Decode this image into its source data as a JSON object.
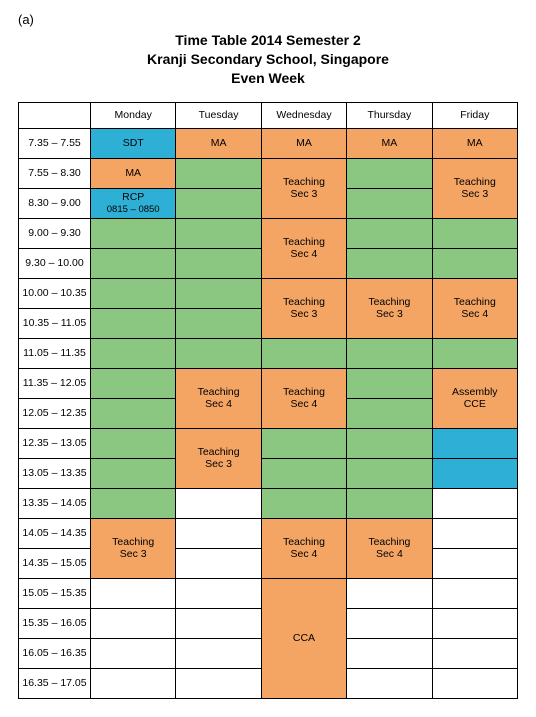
{
  "figure_label": "(a)",
  "title_lines": [
    "Time Table 2014 Semester 2",
    "Kranji Secondary School, Singapore",
    "Even Week"
  ],
  "colors": {
    "blue": "#2eb0d6",
    "orange": "#f4a564",
    "green": "#8bc780",
    "white": "#ffffff",
    "border": "#000000",
    "text": "#1a1a1a"
  },
  "days": [
    "Monday",
    "Tuesday",
    "Wednesday",
    "Thursday",
    "Friday"
  ],
  "time_slots": [
    "7.35 – 7.55",
    "7.55 – 8.30",
    "8.30 – 9.00",
    "9.00 – 9.30",
    "9.30 – 10.00",
    "10.00 – 10.35",
    "10.35 – 11.05",
    "11.05 – 11.35",
    "11.35 – 12.05",
    "12.05 – 12.35",
    "12.35 – 13.05",
    "13.05 – 13.35",
    "13.35 – 14.05",
    "14.05 – 14.35",
    "14.35 – 15.05",
    "15.05 – 15.35",
    "15.35 – 16.05",
    "16.05 – 16.35",
    "16.35 – 17.05"
  ],
  "labels": {
    "sdt": "SDT",
    "ma": "MA",
    "rcp_line1": "RCP",
    "rcp_line2": "0815 – 0850",
    "teach_sec3": "Teaching\nSec 3",
    "teach_sec4": "Teaching\nSec 4",
    "assembly": "Assembly\nCCE",
    "cca": "CCA"
  },
  "grid": [
    [
      {
        "c": "blue",
        "t": "sdt"
      },
      {
        "c": "orange",
        "t": "ma"
      },
      {
        "c": "orange",
        "t": "ma"
      },
      {
        "c": "orange",
        "t": "ma"
      },
      {
        "c": "orange",
        "t": "ma"
      }
    ],
    [
      {
        "c": "orange",
        "t": "ma"
      },
      {
        "c": "green"
      },
      {
        "c": "orange",
        "t": "teach_sec3",
        "rs": 2
      },
      {
        "c": "green"
      },
      {
        "c": "orange",
        "t": "teach_sec3",
        "rs": 2
      }
    ],
    [
      {
        "c": "blue",
        "t": "rcp",
        "two": true
      },
      {
        "c": "green"
      },
      null,
      {
        "c": "green"
      },
      null
    ],
    [
      {
        "c": "green"
      },
      {
        "c": "green"
      },
      {
        "c": "orange",
        "t": "teach_sec4",
        "rs": 2
      },
      {
        "c": "green"
      },
      {
        "c": "green"
      }
    ],
    [
      {
        "c": "green"
      },
      {
        "c": "green"
      },
      null,
      {
        "c": "green"
      },
      {
        "c": "green"
      }
    ],
    [
      {
        "c": "green"
      },
      {
        "c": "green"
      },
      {
        "c": "orange",
        "t": "teach_sec3",
        "rs": 2
      },
      {
        "c": "orange",
        "t": "teach_sec3",
        "rs": 2
      },
      {
        "c": "orange",
        "t": "teach_sec4",
        "rs": 2
      }
    ],
    [
      {
        "c": "green"
      },
      {
        "c": "green"
      },
      null,
      null,
      null
    ],
    [
      {
        "c": "green"
      },
      {
        "c": "green"
      },
      {
        "c": "green"
      },
      {
        "c": "green"
      },
      {
        "c": "green"
      }
    ],
    [
      {
        "c": "green"
      },
      {
        "c": "orange",
        "t": "teach_sec4",
        "rs": 2
      },
      {
        "c": "orange",
        "t": "teach_sec4",
        "rs": 2
      },
      {
        "c": "green"
      },
      {
        "c": "orange",
        "t": "assembly",
        "rs": 2
      }
    ],
    [
      {
        "c": "green"
      },
      null,
      null,
      {
        "c": "green"
      },
      null
    ],
    [
      {
        "c": "green"
      },
      {
        "c": "orange",
        "t": "teach_sec3",
        "rs": 2
      },
      {
        "c": "green"
      },
      {
        "c": "green"
      },
      {
        "c": "blue"
      }
    ],
    [
      {
        "c": "green"
      },
      null,
      {
        "c": "green"
      },
      {
        "c": "green"
      },
      {
        "c": "blue"
      }
    ],
    [
      {
        "c": "green"
      },
      {
        "c": "white"
      },
      {
        "c": "green"
      },
      {
        "c": "green"
      },
      {
        "c": "white"
      }
    ],
    [
      {
        "c": "orange",
        "t": "teach_sec3",
        "rs": 2
      },
      {
        "c": "white"
      },
      {
        "c": "orange",
        "t": "teach_sec4",
        "rs": 2
      },
      {
        "c": "orange",
        "t": "teach_sec4",
        "rs": 2
      },
      {
        "c": "white"
      }
    ],
    [
      null,
      {
        "c": "white"
      },
      null,
      null,
      {
        "c": "white"
      }
    ],
    [
      {
        "c": "white"
      },
      {
        "c": "white"
      },
      {
        "c": "orange",
        "t": "cca",
        "rs": 4
      },
      {
        "c": "white"
      },
      {
        "c": "white"
      }
    ],
    [
      {
        "c": "white"
      },
      {
        "c": "white"
      },
      null,
      {
        "c": "white"
      },
      {
        "c": "white"
      }
    ],
    [
      {
        "c": "white"
      },
      {
        "c": "white"
      },
      null,
      {
        "c": "white"
      },
      {
        "c": "white"
      }
    ],
    [
      {
        "c": "white"
      },
      {
        "c": "white"
      },
      null,
      {
        "c": "white"
      },
      {
        "c": "white"
      }
    ]
  ]
}
